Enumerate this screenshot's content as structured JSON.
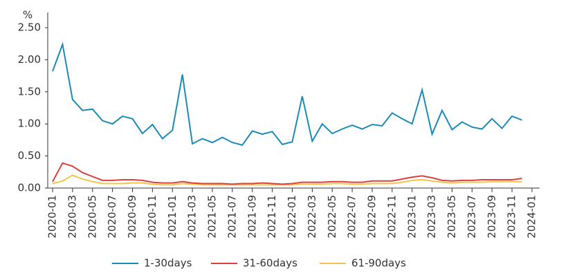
{
  "chart_data": {
    "type": "line",
    "y_unit": "%",
    "categories": [
      "2020-01",
      null,
      "2020-03",
      null,
      "2020-05",
      null,
      "2020-07",
      null,
      "2020-09",
      null,
      "2020-11",
      null,
      "2021-01",
      null,
      "2021-03",
      null,
      "2021-05",
      null,
      "2021-07",
      null,
      "2021-09",
      null,
      "2021-11",
      null,
      "2022-01",
      null,
      "2022-03",
      null,
      "2022-05",
      null,
      "2022-07",
      null,
      "2022-09",
      null,
      "2022-11",
      null,
      "2023-01",
      null,
      "2023-03",
      null,
      "2023-05",
      null,
      "2023-07",
      null,
      "2023-09",
      null,
      "2023-11",
      null,
      "2024-01"
    ],
    "series": [
      {
        "name": "1-30days",
        "color": "#1a8ab8",
        "values": [
          1.82,
          2.24,
          1.38,
          1.21,
          1.23,
          1.05,
          1.0,
          1.12,
          1.08,
          0.85,
          0.99,
          0.77,
          0.9,
          1.77,
          0.69,
          0.77,
          0.71,
          0.79,
          0.71,
          0.67,
          0.89,
          0.84,
          0.88,
          0.68,
          0.72,
          1.43,
          0.73,
          1.0,
          0.85,
          0.92,
          0.98,
          0.92,
          0.99,
          0.97,
          1.17,
          1.08,
          1.0,
          1.53,
          0.84,
          1.21,
          0.91,
          1.03,
          0.95,
          0.92,
          1.08,
          0.93,
          1.12,
          1.06,
          null
        ]
      },
      {
        "name": "31-60days",
        "color": "#d9413c",
        "values": [
          0.1,
          0.39,
          0.34,
          0.24,
          0.18,
          0.12,
          0.12,
          0.13,
          0.13,
          0.12,
          0.09,
          0.08,
          0.08,
          0.1,
          0.08,
          0.07,
          0.07,
          0.07,
          0.06,
          0.07,
          0.07,
          0.08,
          0.07,
          0.06,
          0.07,
          0.09,
          0.09,
          0.09,
          0.1,
          0.1,
          0.09,
          0.09,
          0.11,
          0.11,
          0.11,
          0.14,
          0.17,
          0.19,
          0.16,
          0.12,
          0.11,
          0.12,
          0.12,
          0.13,
          0.13,
          0.13,
          0.13,
          0.15,
          null
        ]
      },
      {
        "name": "61-90days",
        "color": "#f2c44e",
        "values": [
          0.07,
          0.11,
          0.2,
          0.14,
          0.1,
          0.07,
          0.07,
          0.07,
          0.08,
          0.08,
          0.06,
          0.05,
          0.05,
          0.07,
          0.06,
          0.05,
          0.05,
          0.05,
          0.05,
          0.05,
          0.05,
          0.05,
          0.05,
          0.05,
          0.05,
          0.06,
          0.06,
          0.06,
          0.07,
          0.07,
          0.06,
          0.06,
          0.07,
          0.07,
          0.07,
          0.09,
          0.12,
          0.13,
          0.11,
          0.09,
          0.08,
          0.09,
          0.09,
          0.09,
          0.1,
          0.1,
          0.1,
          0.1,
          null
        ]
      }
    ],
    "ylim": [
      0,
      2.5
    ],
    "yticks": [
      {
        "value": 0,
        "label": "0.00"
      },
      {
        "value": 0.5,
        "label": "0.50"
      },
      {
        "value": 1,
        "label": "1.00"
      },
      {
        "value": 1.5,
        "label": "1.50"
      },
      {
        "value": 2,
        "label": "2.00"
      },
      {
        "value": 2.5,
        "label": "2.50"
      }
    ],
    "grid": false,
    "legend": "bottom"
  }
}
